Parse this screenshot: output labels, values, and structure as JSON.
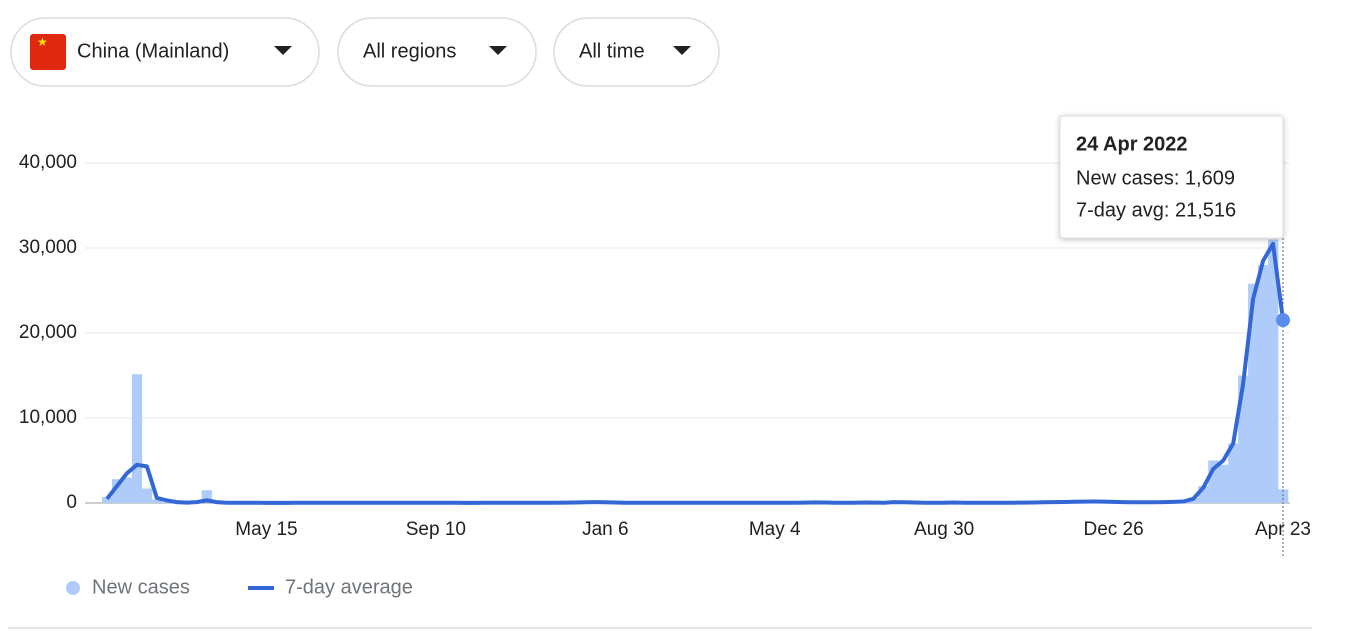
{
  "filters": [
    "China (Mainland)",
    "All regions",
    "All time"
  ],
  "chart_data": {
    "type": "bar",
    "categories": [
      null,
      null,
      null,
      null,
      null,
      null,
      null,
      null,
      null,
      null,
      null,
      null,
      null,
      null,
      null,
      null,
      "May 15",
      null,
      null,
      null,
      null,
      null,
      null,
      null,
      null,
      null,
      null,
      null,
      null,
      null,
      null,
      null,
      null,
      "Sep 10",
      null,
      null,
      null,
      null,
      null,
      null,
      null,
      null,
      null,
      null,
      null,
      null,
      null,
      null,
      null,
      null,
      "Jan 6",
      null,
      null,
      null,
      null,
      null,
      null,
      null,
      null,
      null,
      null,
      null,
      null,
      null,
      null,
      null,
      null,
      "May 4",
      null,
      null,
      null,
      null,
      null,
      null,
      null,
      null,
      null,
      null,
      null,
      null,
      null,
      null,
      null,
      null,
      "Aug 30",
      null,
      null,
      null,
      null,
      null,
      null,
      null,
      null,
      null,
      null,
      null,
      null,
      null,
      null,
      null,
      null,
      "Dec 26",
      null,
      null,
      null,
      null,
      null,
      null,
      null,
      null,
      null,
      null,
      null,
      null,
      null,
      null,
      null,
      null,
      "Apr 23"
    ],
    "series": [
      {
        "name": "New cases",
        "color": "#aecbfa",
        "values": [
          700,
          2800,
          3000,
          15152,
          1700,
          400,
          100,
          60,
          50,
          80,
          1500,
          30,
          20,
          15,
          10,
          10,
          10,
          10,
          15,
          20,
          20,
          25,
          30,
          20,
          20,
          25,
          30,
          40,
          25,
          20,
          20,
          15,
          20,
          25,
          20,
          20,
          15,
          15,
          20,
          20,
          25,
          30,
          20,
          25,
          30,
          40,
          45,
          40,
          80,
          120,
          90,
          60,
          40,
          30,
          25,
          20,
          20,
          15,
          20,
          20,
          25,
          30,
          20,
          20,
          25,
          30,
          30,
          25,
          30,
          35,
          60,
          80,
          60,
          40,
          30,
          40,
          60,
          50,
          40,
          130,
          90,
          60,
          40,
          30,
          40,
          60,
          40,
          30,
          25,
          30,
          40,
          30,
          45,
          60,
          80,
          100,
          120,
          140,
          180,
          200,
          150,
          120,
          100,
          80,
          70,
          80,
          100,
          150,
          200,
          600,
          2000,
          5000,
          4500,
          7000,
          15000,
          25800,
          28000,
          31000,
          1609
        ]
      },
      {
        "name": "7-day average",
        "color": "#3367d6",
        "values": [
          500,
          2000,
          3500,
          4500,
          4300,
          600,
          300,
          100,
          50,
          100,
          300,
          100,
          40,
          30,
          25,
          20,
          15,
          15,
          15,
          20,
          20,
          25,
          25,
          20,
          20,
          25,
          30,
          30,
          25,
          20,
          20,
          20,
          20,
          20,
          20,
          20,
          15,
          15,
          20,
          20,
          25,
          25,
          25,
          25,
          30,
          40,
          45,
          60,
          90,
          110,
          90,
          60,
          40,
          30,
          25,
          20,
          20,
          20,
          20,
          20,
          25,
          25,
          20,
          20,
          25,
          30,
          30,
          30,
          30,
          35,
          50,
          70,
          60,
          40,
          35,
          40,
          55,
          50,
          40,
          100,
          90,
          60,
          40,
          35,
          40,
          55,
          40,
          30,
          30,
          30,
          35,
          35,
          45,
          60,
          80,
          100,
          120,
          140,
          160,
          180,
          160,
          130,
          100,
          90,
          80,
          80,
          100,
          130,
          180,
          500,
          1800,
          4000,
          5000,
          7000,
          14000,
          24000,
          28500,
          30500,
          21516
        ]
      }
    ],
    "ylim": [
      0,
      40000
    ],
    "yticks": [
      0,
      {
        "value": 10000,
        "label": "10,000"
      },
      {
        "value": 20000,
        "label": "20,000"
      },
      {
        "value": 30000,
        "label": "30,000"
      },
      {
        "value": 40000,
        "label": "40,000"
      }
    ],
    "grid": true,
    "tooltip": {
      "date": "24 Apr 2022",
      "lines": [
        "New cases: 1,609",
        "7-day avg: 21,516"
      ]
    }
  }
}
